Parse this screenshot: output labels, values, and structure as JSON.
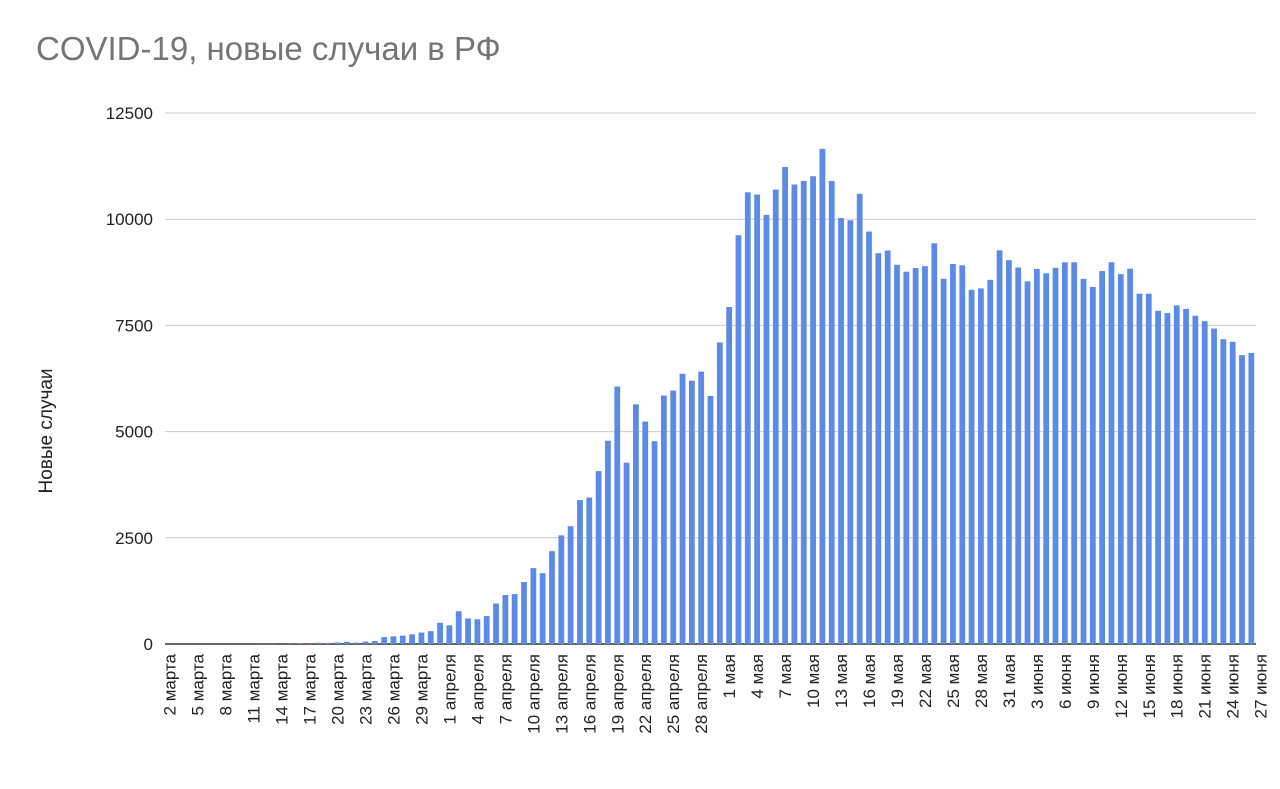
{
  "chart_data": {
    "type": "bar",
    "title": "COVID-19, новые случаи в РФ",
    "xlabel": "",
    "ylabel": "Новые случаи",
    "ylim": [
      0,
      12500
    ],
    "yticks": [
      0,
      2500,
      5000,
      7500,
      10000,
      12500
    ],
    "grid": true,
    "legend": "none",
    "bar_color": "#5b8be6",
    "x_labels_shown": [
      "2 марта",
      "5 марта",
      "8 марта",
      "11 марта",
      "14 марта",
      "17 марта",
      "20 марта",
      "23 марта",
      "26 марта",
      "29 марта",
      "1 апреля",
      "4 апреля",
      "7 апреля",
      "10 апреля",
      "13 апреля",
      "16 апреля",
      "19 апреля",
      "22 апреля",
      "25 апреля",
      "28 апреля",
      "1 мая",
      "4 мая",
      "7 мая",
      "10 мая",
      "13 мая",
      "16 мая",
      "19 мая",
      "22 мая",
      "25 мая",
      "28 мая",
      "31 мая",
      "3 июня",
      "6 июня",
      "9 июня",
      "12 июня",
      "15 июня",
      "18 июня",
      "21 июня",
      "24 июня",
      "27 июня"
    ],
    "values": [
      0,
      1,
      1,
      0,
      0,
      0,
      1,
      0,
      1,
      1,
      3,
      4,
      0,
      6,
      18,
      4,
      30,
      27,
      35,
      52,
      33,
      57,
      71,
      163,
      182,
      196,
      228,
      270,
      302,
      501,
      440,
      771,
      601,
      582,
      658,
      954,
      1154,
      1175,
      1459,
      1786,
      1667,
      2186,
      2558,
      2774,
      3388,
      3448,
      4070,
      4785,
      6060,
      4268,
      5642,
      5236,
      4774,
      5849,
      5966,
      6361,
      6198,
      6411,
      5841,
      7099,
      7933,
      9623,
      10633,
      10581,
      10102,
      10699,
      11231,
      10817,
      10899,
      11012,
      11656,
      10899,
      10028,
      9974,
      10598,
      9709,
      9200,
      9263,
      8926,
      8764,
      8849,
      8894,
      9434,
      8599,
      8946,
      8915,
      8338,
      8371,
      8572,
      9268,
      9035,
      8863,
      8536,
      8831,
      8726,
      8855,
      8985,
      8985,
      8595,
      8404,
      8779,
      8987,
      8706,
      8835,
      8248,
      8246,
      7843,
      7790,
      7972,
      7889,
      7728,
      7600,
      7425,
      7176,
      7113,
      6800,
      6852
    ]
  }
}
